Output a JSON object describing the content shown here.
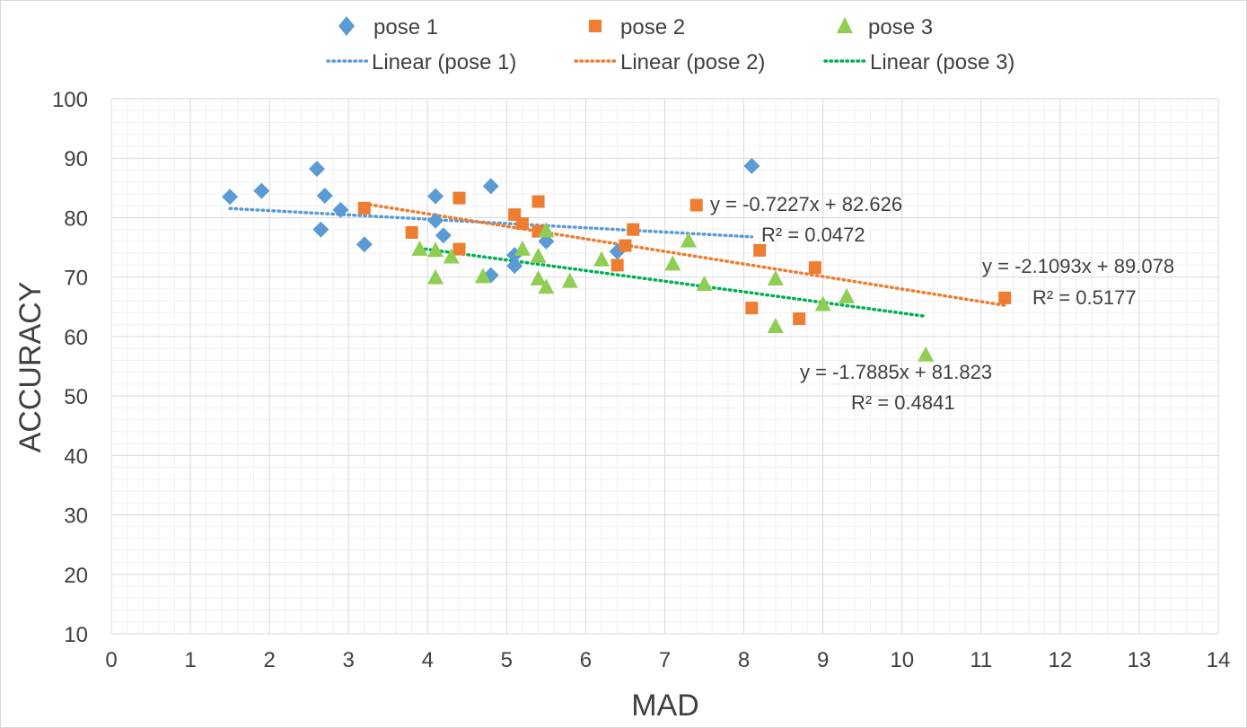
{
  "chart_data": {
    "type": "scatter",
    "title": "",
    "xlabel": "MAD",
    "ylabel": "ACCURACY",
    "xlim": [
      0,
      14
    ],
    "ylim": [
      10,
      100
    ],
    "x_ticks": [
      "0",
      "1",
      "2",
      "3",
      "4",
      "5",
      "6",
      "7",
      "8",
      "9",
      "10",
      "11",
      "12",
      "13",
      "14"
    ],
    "y_ticks": [
      "10",
      "20",
      "30",
      "40",
      "50",
      "60",
      "70",
      "80",
      "90",
      "100"
    ],
    "grid": "major and minor",
    "legend_position": "top",
    "series": [
      {
        "name": "pose 1",
        "marker": "diamond",
        "color": "#5b9bd5",
        "points": [
          [
            1.5,
            83.5
          ],
          [
            1.9,
            84.5
          ],
          [
            2.6,
            88.2
          ],
          [
            2.65,
            78
          ],
          [
            2.7,
            83.7
          ],
          [
            2.9,
            81.3
          ],
          [
            3.2,
            75.5
          ],
          [
            4.1,
            83.6
          ],
          [
            4.1,
            79.5
          ],
          [
            4.2,
            77
          ],
          [
            4.8,
            85.3
          ],
          [
            4.8,
            70.3
          ],
          [
            5.1,
            73.7
          ],
          [
            5.1,
            71.9
          ],
          [
            5.5,
            76
          ],
          [
            6.4,
            74.3
          ],
          [
            8.1,
            88.7
          ]
        ],
        "trendline": {
          "name": "Linear (pose 1)",
          "color": "#5b9bd5",
          "x_range": [
            1.5,
            8.1
          ],
          "equation": "y = -0.7227x + 82.626",
          "r2": "R² = 0.0472"
        }
      },
      {
        "name": "pose 2",
        "marker": "square",
        "color": "#ed7d31",
        "points": [
          [
            3.2,
            81.6
          ],
          [
            3.8,
            77.5
          ],
          [
            4.4,
            83.3
          ],
          [
            4.4,
            74.7
          ],
          [
            5.1,
            80.5
          ],
          [
            5.2,
            79
          ],
          [
            5.4,
            82.7
          ],
          [
            5.4,
            77.7
          ],
          [
            6.4,
            72
          ],
          [
            6.5,
            75.3
          ],
          [
            6.6,
            78
          ],
          [
            7.4,
            82.1
          ],
          [
            8.1,
            64.8
          ],
          [
            8.2,
            74.5
          ],
          [
            8.7,
            63
          ],
          [
            8.9,
            71.6
          ],
          [
            11.3,
            66.5
          ]
        ],
        "trendline": {
          "name": "Linear (pose 2)",
          "color": "#ed7d31",
          "x_range": [
            3.2,
            11.3
          ],
          "equation": "y = -2.1093x + 89.078",
          "r2": "R² = 0.5177"
        }
      },
      {
        "name": "pose 3",
        "marker": "triangle",
        "color": "#8fce55",
        "points": [
          [
            3.9,
            74.8
          ],
          [
            4.1,
            74.6
          ],
          [
            4.1,
            70
          ],
          [
            4.3,
            73.5
          ],
          [
            4.7,
            70.2
          ],
          [
            5.2,
            74.8
          ],
          [
            5.4,
            73.6
          ],
          [
            5.4,
            69.8
          ],
          [
            5.5,
            68.4
          ],
          [
            5.5,
            77.9
          ],
          [
            5.8,
            69.4
          ],
          [
            6.2,
            73
          ],
          [
            7.1,
            72.3
          ],
          [
            7.3,
            76.2
          ],
          [
            7.5,
            68.9
          ],
          [
            8.4,
            61.8
          ],
          [
            8.4,
            69.8
          ],
          [
            9,
            65.5
          ],
          [
            9.3,
            66.8
          ],
          [
            10.3,
            57
          ]
        ],
        "trendline": {
          "name": "Linear (pose 3)",
          "color": "#00b050",
          "x_range": [
            3.9,
            10.3
          ],
          "equation": "y = -1.7885x + 81.823",
          "r2": "R² = 0.4841"
        }
      }
    ]
  }
}
